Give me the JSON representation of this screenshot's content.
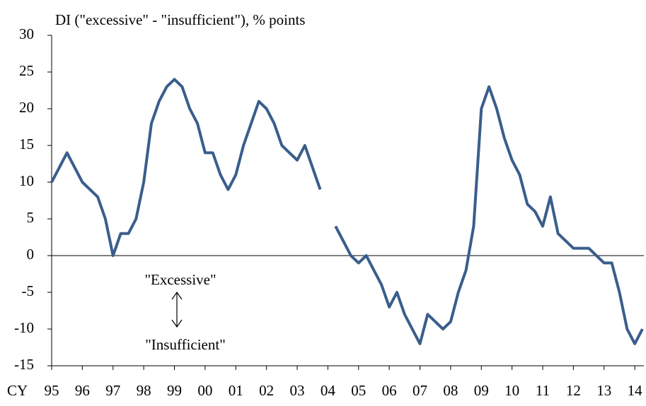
{
  "chart_data": {
    "type": "line",
    "title": "DI (\"excessive\" - \"insufficient\"), % points",
    "x_axis_label": "CY",
    "annotations": [
      "\"Excessive\"",
      "\"Insufficient\""
    ],
    "categories": [
      "95",
      null,
      null,
      null,
      "96",
      null,
      null,
      null,
      "97",
      null,
      null,
      null,
      "98",
      null,
      null,
      null,
      "99",
      null,
      null,
      null,
      "00",
      null,
      null,
      null,
      "01",
      null,
      null,
      null,
      "02",
      null,
      null,
      null,
      "03",
      null,
      null,
      null,
      "04",
      null,
      null,
      null,
      "05",
      null,
      null,
      null,
      "06",
      null,
      null,
      null,
      "07",
      null,
      null,
      null,
      "08",
      null,
      null,
      null,
      "09",
      null,
      null,
      null,
      "10",
      null,
      null,
      null,
      "11",
      null,
      null,
      null,
      "12",
      null,
      null,
      null,
      "13",
      null,
      null,
      null,
      "14",
      null
    ],
    "series": [
      {
        "color": "#3a5e8c",
        "values": [
          10,
          12,
          14,
          12,
          10,
          9,
          8,
          5,
          0,
          3,
          3,
          5,
          10,
          18,
          21,
          23,
          24,
          23,
          20,
          18,
          14,
          14,
          11,
          9,
          11,
          15,
          18,
          21,
          20,
          18,
          15,
          14,
          13,
          15,
          12,
          9,
          null,
          4,
          2,
          0,
          -1,
          0,
          -2,
          -4,
          -7,
          -5,
          -8,
          -10,
          -12,
          -8,
          -9,
          -10,
          -9,
          -5,
          -2,
          4,
          20,
          23,
          20,
          16,
          13,
          11,
          7,
          6,
          4,
          8,
          3,
          2,
          1,
          1,
          1,
          0,
          -1,
          -1,
          -5,
          -10,
          -12,
          -10
        ]
      }
    ],
    "ylim": [
      -15,
      30
    ],
    "yticks": [
      -15,
      -10,
      -5,
      0,
      5,
      10,
      15,
      20,
      25,
      30
    ],
    "grid": false
  }
}
